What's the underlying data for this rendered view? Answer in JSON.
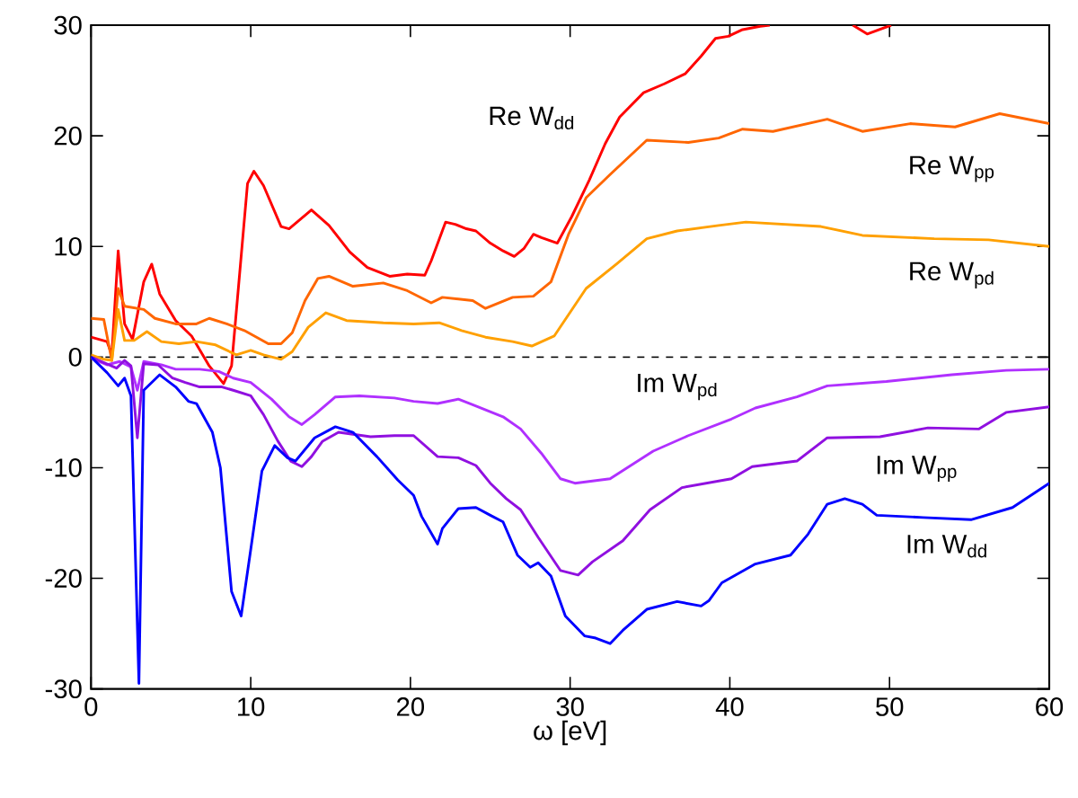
{
  "chart_data": {
    "type": "line",
    "xlabel": "ω [eV]",
    "xlim": [
      0,
      60
    ],
    "ylim": [
      -30,
      30
    ],
    "xticks": [
      0,
      10,
      20,
      30,
      40,
      50,
      60
    ],
    "yticks": [
      -30,
      -20,
      -10,
      0,
      10,
      20,
      30
    ],
    "grid": false,
    "marker": "none",
    "line_style": "solid",
    "ref_lines": [
      {
        "axis": "y",
        "value": 0,
        "color": "#000000",
        "line_style": "dashed"
      }
    ],
    "series": [
      {
        "name": "Re W$_{dd}$",
        "color": "#ff0000",
        "x": [
          0,
          1.0,
          1.3,
          1.7,
          2.1,
          2.6,
          3.3,
          3.8,
          4.3,
          5.3,
          6.3,
          7.4,
          8.3,
          8.8,
          9.8,
          10.2,
          10.8,
          11.9,
          12.4,
          13.8,
          14.9,
          16.2,
          17.3,
          18.7,
          19.8,
          20.9,
          21.3,
          22.2,
          22.8,
          23.5,
          24.1,
          25.0,
          25.8,
          26.5,
          27.1,
          27.7,
          28.2,
          29.2,
          30.1,
          31.2,
          32.2,
          33.1,
          34.6,
          35.9,
          37.2,
          38.2,
          39.1,
          39.9,
          40.8,
          41.9,
          42.5,
          45.0,
          47.7,
          48.6,
          50.1
        ],
        "values": [
          1.8,
          1.4,
          0.2,
          9.6,
          3.0,
          1.6,
          6.8,
          8.4,
          5.7,
          3.3,
          1.9,
          -0.8,
          -2.4,
          -0.8,
          15.7,
          16.8,
          15.5,
          11.8,
          11.6,
          13.3,
          11.9,
          9.5,
          8.1,
          7.3,
          7.5,
          7.4,
          8.7,
          12.2,
          12.0,
          11.6,
          11.4,
          10.3,
          9.6,
          9.1,
          9.8,
          11.1,
          10.8,
          10.3,
          12.7,
          16.0,
          19.3,
          21.7,
          23.9,
          24.7,
          25.6,
          27.2,
          28.8,
          29.0,
          29.6,
          29.9,
          30,
          null,
          30,
          29.2,
          30
        ]
      },
      {
        "name": "Re W$_{pp}$",
        "color": "#ff6600",
        "x": [
          0,
          0.8,
          1.3,
          1.7,
          2.1,
          3.3,
          4.0,
          5.3,
          6.6,
          7.4,
          8.5,
          9.6,
          11.1,
          11.9,
          12.6,
          13.4,
          14.2,
          14.9,
          16.4,
          18.3,
          19.8,
          21.3,
          22.0,
          23.9,
          24.7,
          26.4,
          27.7,
          28.8,
          29.9,
          31.0,
          32.5,
          34.8,
          37.4,
          39.3,
          40.8,
          42.7,
          46.1,
          48.3,
          51.3,
          54.1,
          56.9,
          60
        ],
        "values": [
          3.5,
          3.4,
          -0.3,
          6.2,
          4.6,
          4.3,
          3.5,
          3.0,
          3.0,
          3.5,
          3.0,
          2.4,
          1.2,
          1.2,
          2.2,
          5.1,
          7.1,
          7.3,
          6.4,
          6.7,
          6.0,
          4.9,
          5.4,
          5.1,
          4.4,
          5.4,
          5.5,
          6.8,
          11.1,
          14.4,
          16.5,
          19.6,
          19.4,
          19.8,
          20.6,
          20.4,
          21.5,
          20.4,
          21.1,
          20.8,
          22.0,
          21.1
        ]
      },
      {
        "name": "Re W$_{pd}$",
        "color": "#ffa000",
        "x": [
          0,
          0.8,
          1.3,
          1.7,
          2.1,
          2.7,
          3.5,
          4.4,
          5.5,
          6.6,
          7.8,
          9.1,
          10.0,
          10.8,
          11.9,
          12.6,
          13.6,
          14.7,
          16.0,
          18.3,
          20.2,
          21.8,
          23.2,
          24.7,
          26.4,
          27.6,
          29.0,
          31.0,
          32.9,
          34.8,
          36.7,
          39.3,
          41.0,
          45.7,
          48.3,
          52.8,
          56.2,
          60
        ],
        "values": [
          0.2,
          -0.2,
          -0.3,
          4.3,
          1.5,
          1.5,
          2.3,
          1.4,
          1.2,
          1.4,
          1.1,
          0.2,
          0.6,
          0.2,
          -0.2,
          0.5,
          2.7,
          4.0,
          3.3,
          3.1,
          3.0,
          3.1,
          2.4,
          1.8,
          1.4,
          1.0,
          1.9,
          6.2,
          8.4,
          10.7,
          11.4,
          11.9,
          12.2,
          11.8,
          11.0,
          10.7,
          10.6,
          10.0
        ]
      },
      {
        "name": "Im W$_{pd}$",
        "color": "#b030ff",
        "x": [
          0,
          1.0,
          1.8,
          2.5,
          2.9,
          3.3,
          4.4,
          5.3,
          6.8,
          8.0,
          8.9,
          10.0,
          11.3,
          12.4,
          13.2,
          14.0,
          15.3,
          16.8,
          19.0,
          20.2,
          21.7,
          23.0,
          23.9,
          25.8,
          26.9,
          28.2,
          29.4,
          30.3,
          32.5,
          35.2,
          37.4,
          40.1,
          41.6,
          44.2,
          46.1,
          49.8,
          53.9,
          57.3,
          60
        ],
        "values": [
          -0.1,
          -0.7,
          -0.4,
          -0.9,
          -3.0,
          -0.4,
          -0.7,
          -1.1,
          -1.1,
          -1.3,
          -1.9,
          -2.3,
          -3.8,
          -5.4,
          -6.1,
          -5.2,
          -3.6,
          -3.5,
          -3.7,
          -4.0,
          -4.2,
          -3.8,
          -4.3,
          -5.4,
          -6.5,
          -8.7,
          -11.0,
          -11.4,
          -11.0,
          -8.5,
          -7.1,
          -5.6,
          -4.6,
          -3.6,
          -2.6,
          -2.2,
          -1.6,
          -1.2,
          -1.1
        ]
      },
      {
        "name": "Im W$_{pp}$",
        "color": "#9010e0",
        "x": [
          0,
          1.6,
          2.1,
          2.5,
          2.9,
          3.3,
          4.2,
          5.1,
          5.9,
          6.8,
          8.2,
          8.9,
          10.0,
          10.8,
          11.7,
          12.5,
          13.2,
          13.8,
          14.5,
          15.5,
          17.5,
          19.0,
          20.2,
          21.7,
          23.0,
          24.1,
          25.0,
          26.0,
          26.9,
          28.0,
          29.4,
          30.5,
          31.4,
          33.3,
          35.0,
          37.0,
          40.1,
          41.4,
          44.2,
          46.1,
          49.4,
          52.4,
          55.6,
          57.3,
          60
        ],
        "values": [
          0,
          -1.0,
          -0.3,
          -0.8,
          -7.3,
          -0.6,
          -0.7,
          -1.9,
          -2.3,
          -2.7,
          -2.7,
          -3.0,
          -3.5,
          -5.2,
          -7.6,
          -9.4,
          -9.9,
          -9.0,
          -7.6,
          -6.8,
          -7.2,
          -7.1,
          -7.1,
          -9.0,
          -9.1,
          -9.8,
          -11.4,
          -12.8,
          -13.8,
          -16.3,
          -19.3,
          -19.7,
          -18.5,
          -16.6,
          -13.8,
          -11.8,
          -11.0,
          -9.9,
          -9.4,
          -7.3,
          -7.2,
          -6.4,
          -6.5,
          -5.0,
          -4.5
        ]
      },
      {
        "name": "Im W$_{dd}$",
        "color": "#0000ff",
        "x": [
          0,
          1.0,
          1.7,
          2.1,
          2.5,
          3.0,
          3.3,
          4.3,
          5.3,
          6.1,
          6.6,
          7.6,
          8.1,
          8.8,
          9.4,
          10.0,
          10.7,
          11.5,
          12.3,
          12.8,
          14.0,
          15.3,
          16.4,
          17.9,
          19.2,
          20.2,
          20.7,
          21.7,
          22.0,
          23.0,
          24.1,
          25.0,
          25.8,
          26.7,
          27.5,
          28.0,
          28.8,
          29.7,
          30.9,
          31.6,
          32.5,
          33.3,
          34.8,
          36.7,
          38.2,
          38.7,
          39.5,
          41.6,
          43.8,
          44.9,
          46.1,
          47.2,
          48.3,
          49.2,
          52.1,
          55.1,
          57.7,
          60
        ],
        "values": [
          0,
          -1.4,
          -2.6,
          -1.9,
          -3.5,
          -29.5,
          -3.0,
          -1.6,
          -2.7,
          -4.0,
          -4.2,
          -6.8,
          -10.0,
          -21.2,
          -23.4,
          -17.4,
          -10.3,
          -8.0,
          -9.1,
          -9.4,
          -7.3,
          -6.3,
          -6.8,
          -9.0,
          -11.1,
          -12.5,
          -14.4,
          -16.9,
          -15.5,
          -13.7,
          -13.6,
          -14.3,
          -14.9,
          -17.9,
          -19.0,
          -18.6,
          -19.8,
          -23.4,
          -25.2,
          -25.4,
          -25.9,
          -24.7,
          -22.8,
          -22.1,
          -22.5,
          -22.0,
          -20.4,
          -18.7,
          -17.9,
          -16.0,
          -13.3,
          -12.8,
          -13.3,
          -14.3,
          -14.5,
          -14.7,
          -13.6,
          -11.4
        ]
      }
    ]
  }
}
